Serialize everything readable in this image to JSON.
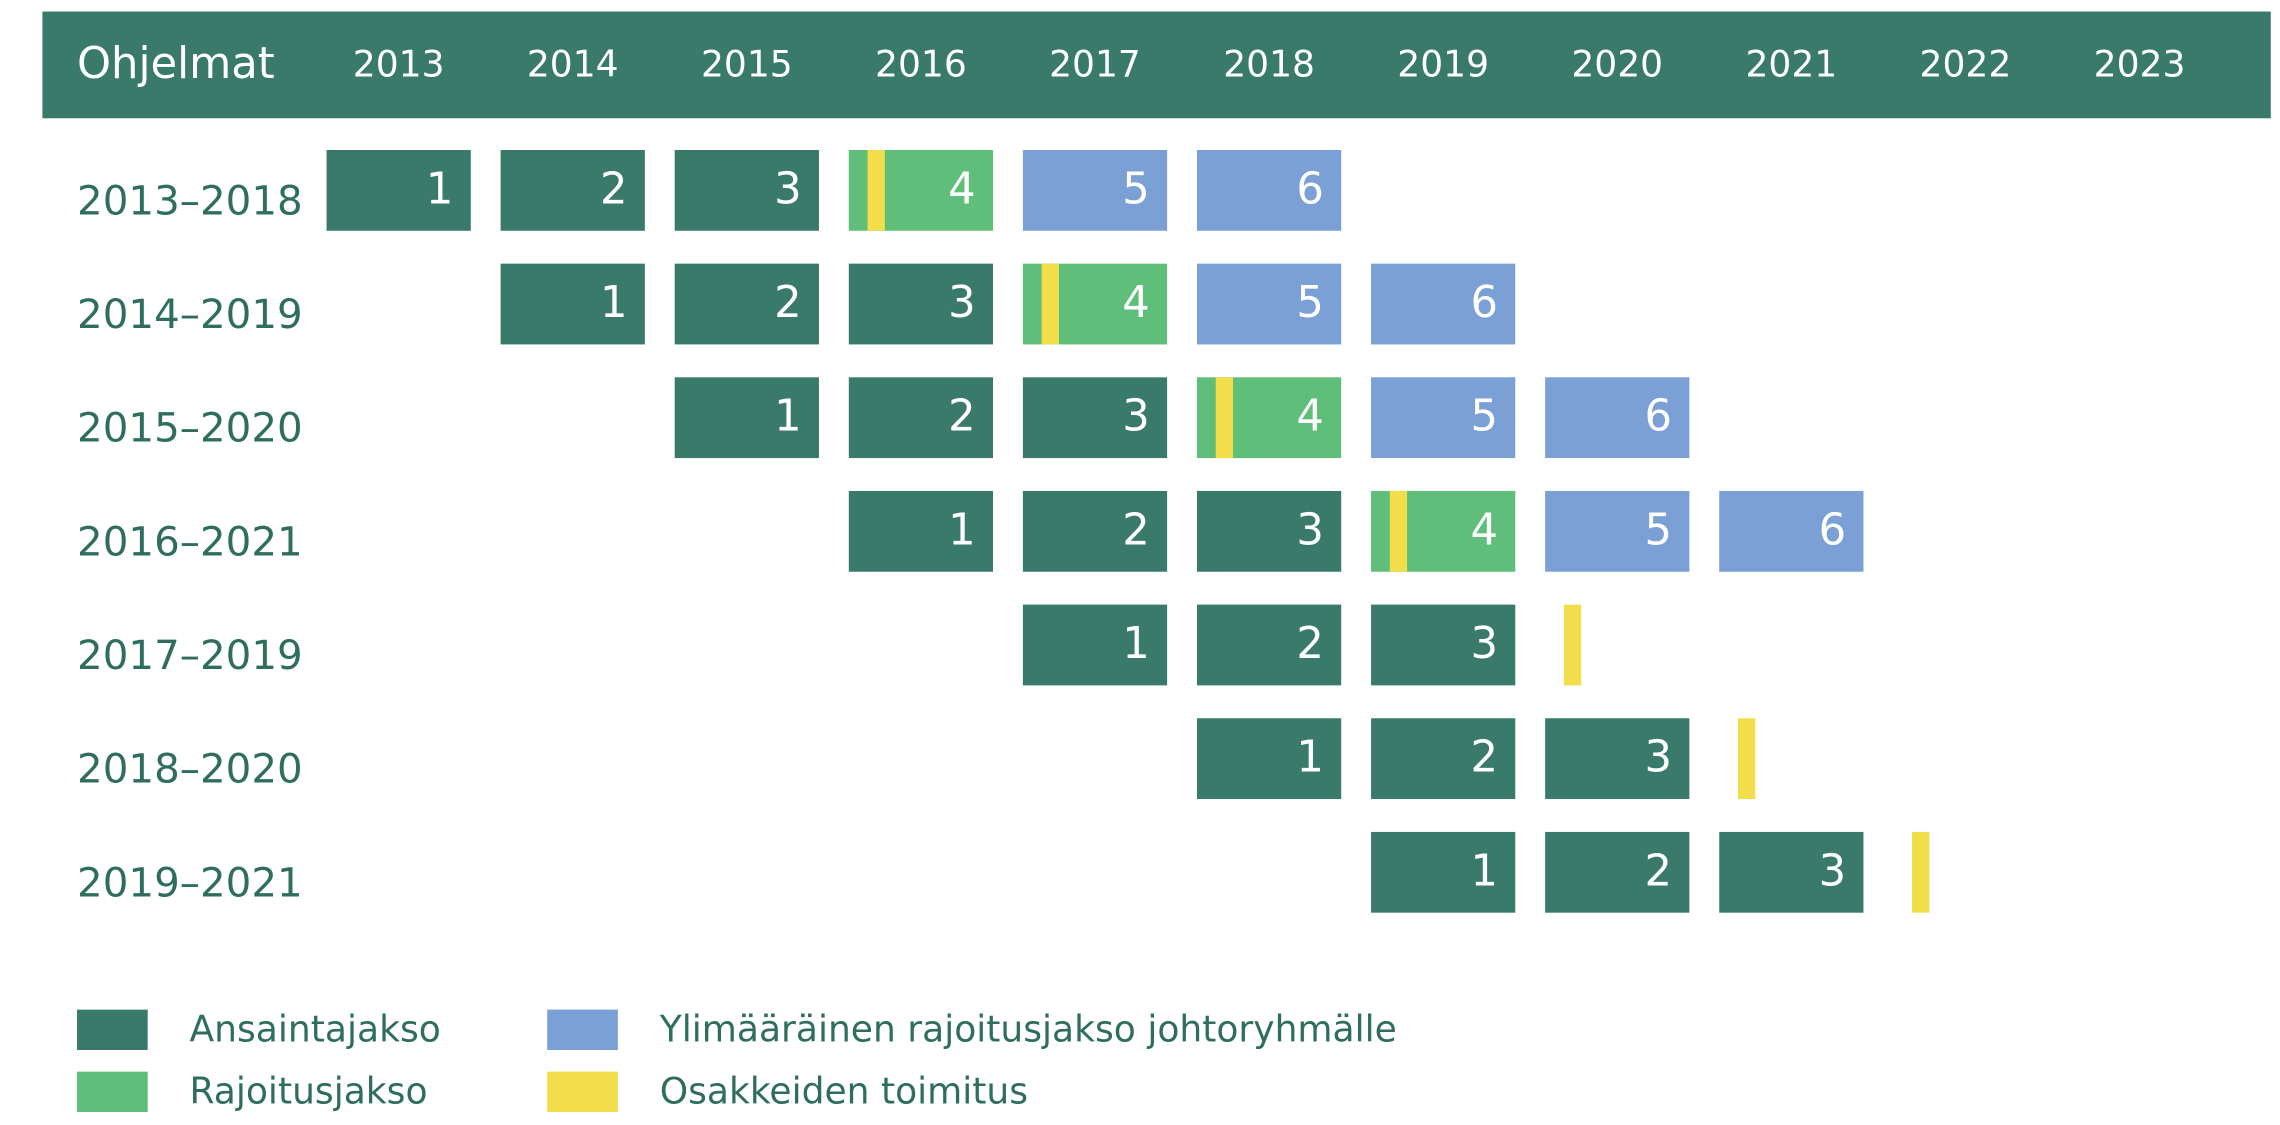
{
  "header": {
    "title": "Ohjelmat",
    "years": [
      "2013",
      "2014",
      "2015",
      "2016",
      "2017",
      "2018",
      "2019",
      "2020",
      "2021",
      "2022",
      "2023"
    ]
  },
  "rows": [
    {
      "label": "2013–2018",
      "periods": [
        {
          "year": "2013",
          "label": "1",
          "color": "#3a7a6b"
        },
        {
          "year": "2014",
          "label": "2",
          "color": "#3a7a6b"
        },
        {
          "year": "2015",
          "label": "3",
          "color": "#3a7a6b"
        },
        {
          "year": "2016",
          "label": "4",
          "color": "#5fbf7a",
          "stripe": "#f2de4a"
        },
        {
          "year": "2017",
          "label": "5",
          "color": "#7aa0d6"
        },
        {
          "year": "2018",
          "label": "6",
          "color": "#7aa0d6"
        }
      ]
    },
    {
      "label": "2014–2019",
      "periods": [
        {
          "year": "2014",
          "label": "1",
          "color": "#3a7a6b"
        },
        {
          "year": "2015",
          "label": "2",
          "color": "#3a7a6b"
        },
        {
          "year": "2016",
          "label": "3",
          "color": "#3a7a6b"
        },
        {
          "year": "2017",
          "label": "4",
          "color": "#5fbf7a",
          "stripe": "#f2de4a"
        },
        {
          "year": "2018",
          "label": "5",
          "color": "#7aa0d6"
        },
        {
          "year": "2019",
          "label": "6",
          "color": "#7aa0d6"
        }
      ]
    },
    {
      "label": "2015–2020",
      "periods": [
        {
          "year": "2015",
          "label": "1",
          "color": "#3a7a6b"
        },
        {
          "year": "2016",
          "label": "2",
          "color": "#3a7a6b"
        },
        {
          "year": "2017",
          "label": "3",
          "color": "#3a7a6b"
        },
        {
          "year": "2018",
          "label": "4",
          "color": "#5fbf7a",
          "stripe": "#f2de4a"
        },
        {
          "year": "2019",
          "label": "5",
          "color": "#7aa0d6"
        },
        {
          "year": "2020",
          "label": "6",
          "color": "#7aa0d6"
        }
      ]
    },
    {
      "label": "2016–2021",
      "periods": [
        {
          "year": "2016",
          "label": "1",
          "color": "#3a7a6b"
        },
        {
          "year": "2017",
          "label": "2",
          "color": "#3a7a6b"
        },
        {
          "year": "2018",
          "label": "3",
          "color": "#3a7a6b"
        },
        {
          "year": "2019",
          "label": "4",
          "color": "#5fbf7a",
          "stripe": "#f2de4a"
        },
        {
          "year": "2020",
          "label": "5",
          "color": "#7aa0d6"
        },
        {
          "year": "2021",
          "label": "6",
          "color": "#7aa0d6"
        }
      ]
    },
    {
      "label": "2017–2019",
      "periods": [
        {
          "year": "2017",
          "label": "1",
          "color": "#3a7a6b"
        },
        {
          "year": "2018",
          "label": "2",
          "color": "#3a7a6b"
        },
        {
          "year": "2019",
          "label": "3",
          "color": "#3a7a6b"
        },
        {
          "year": "2020",
          "color": "#f2de4a"
        }
      ]
    },
    {
      "label": "2018–2020",
      "periods": [
        {
          "year": "2018",
          "label": "1",
          "color": "#3a7a6b"
        },
        {
          "year": "2019",
          "label": "2",
          "color": "#3a7a6b"
        },
        {
          "year": "2020",
          "label": "3",
          "color": "#3a7a6b"
        },
        {
          "year": "2021",
          "color": "#f2de4a"
        }
      ]
    },
    {
      "label": "2019–2021",
      "periods": [
        {
          "year": "2019",
          "label": "1",
          "color": "#3a7a6b"
        },
        {
          "year": "2020",
          "label": "2",
          "color": "#3a7a6b"
        },
        {
          "year": "2021",
          "label": "3",
          "color": "#3a7a6b"
        },
        {
          "year": "2022",
          "color": "#f2de4a"
        }
      ]
    }
  ],
  "legend": [
    {
      "label": "Ansaintajakso",
      "color": "#3a7a6b"
    },
    {
      "label": "Rajoitusjakso",
      "color": "#5fbf7a"
    },
    {
      "label": "Ylimääräinen rajoitusjakso johtoryhmälle",
      "color": "#7aa0d6"
    },
    {
      "label": "Osakkeiden toimitus",
      "color": "#f2de4a"
    }
  ]
}
